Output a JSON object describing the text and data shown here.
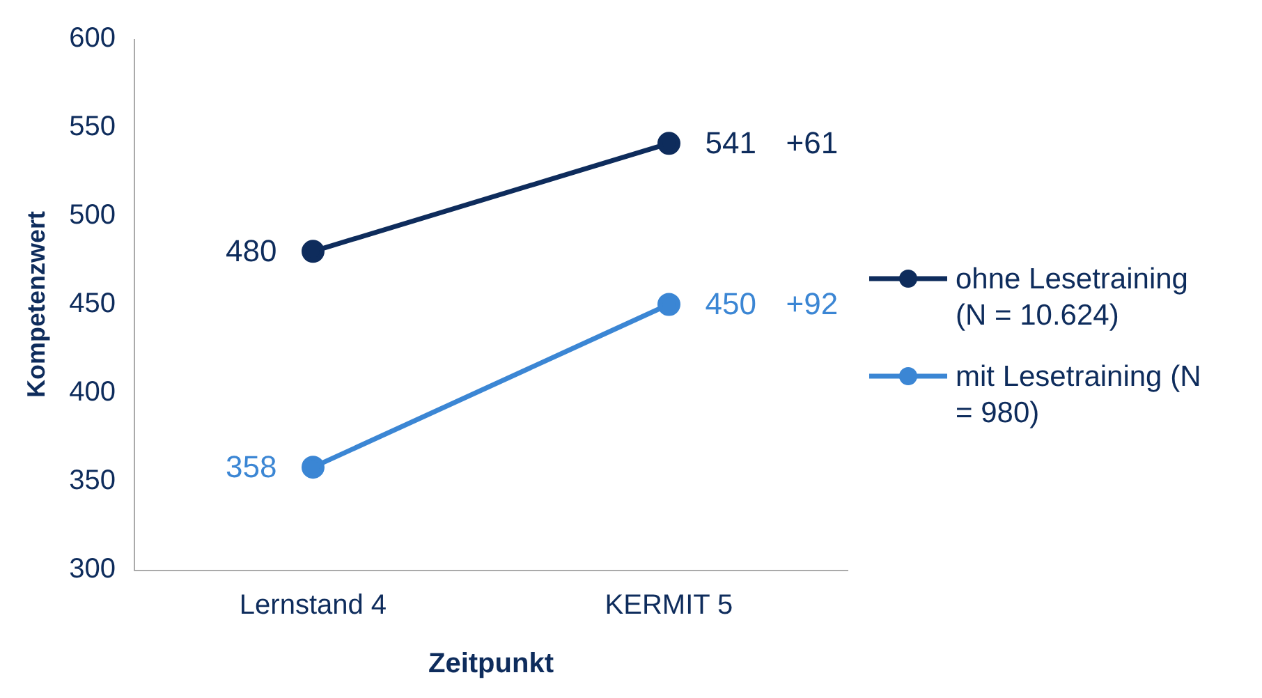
{
  "chart_data": {
    "type": "line",
    "xlabel": "Zeitpunkt",
    "ylabel": "Kompetenzwert",
    "categories": [
      "Lernstand 4",
      "KERMIT 5"
    ],
    "series": [
      {
        "name": "ohne Lesetraining (N = 10.624)",
        "color": "#0e2c5c",
        "values": [
          480,
          541
        ]
      },
      {
        "name": "mit Lesetraining (N = 980)",
        "color": "#3b86d4",
        "values": [
          358,
          450
        ]
      }
    ],
    "ylim": [
      300,
      600
    ],
    "yticks": [
      300,
      350,
      400,
      450,
      500,
      550,
      600
    ],
    "grid": false,
    "legend": "right",
    "marker": "circle",
    "line_style": "solid",
    "data_labels": true,
    "annotations": [
      "+61",
      "+92"
    ]
  }
}
